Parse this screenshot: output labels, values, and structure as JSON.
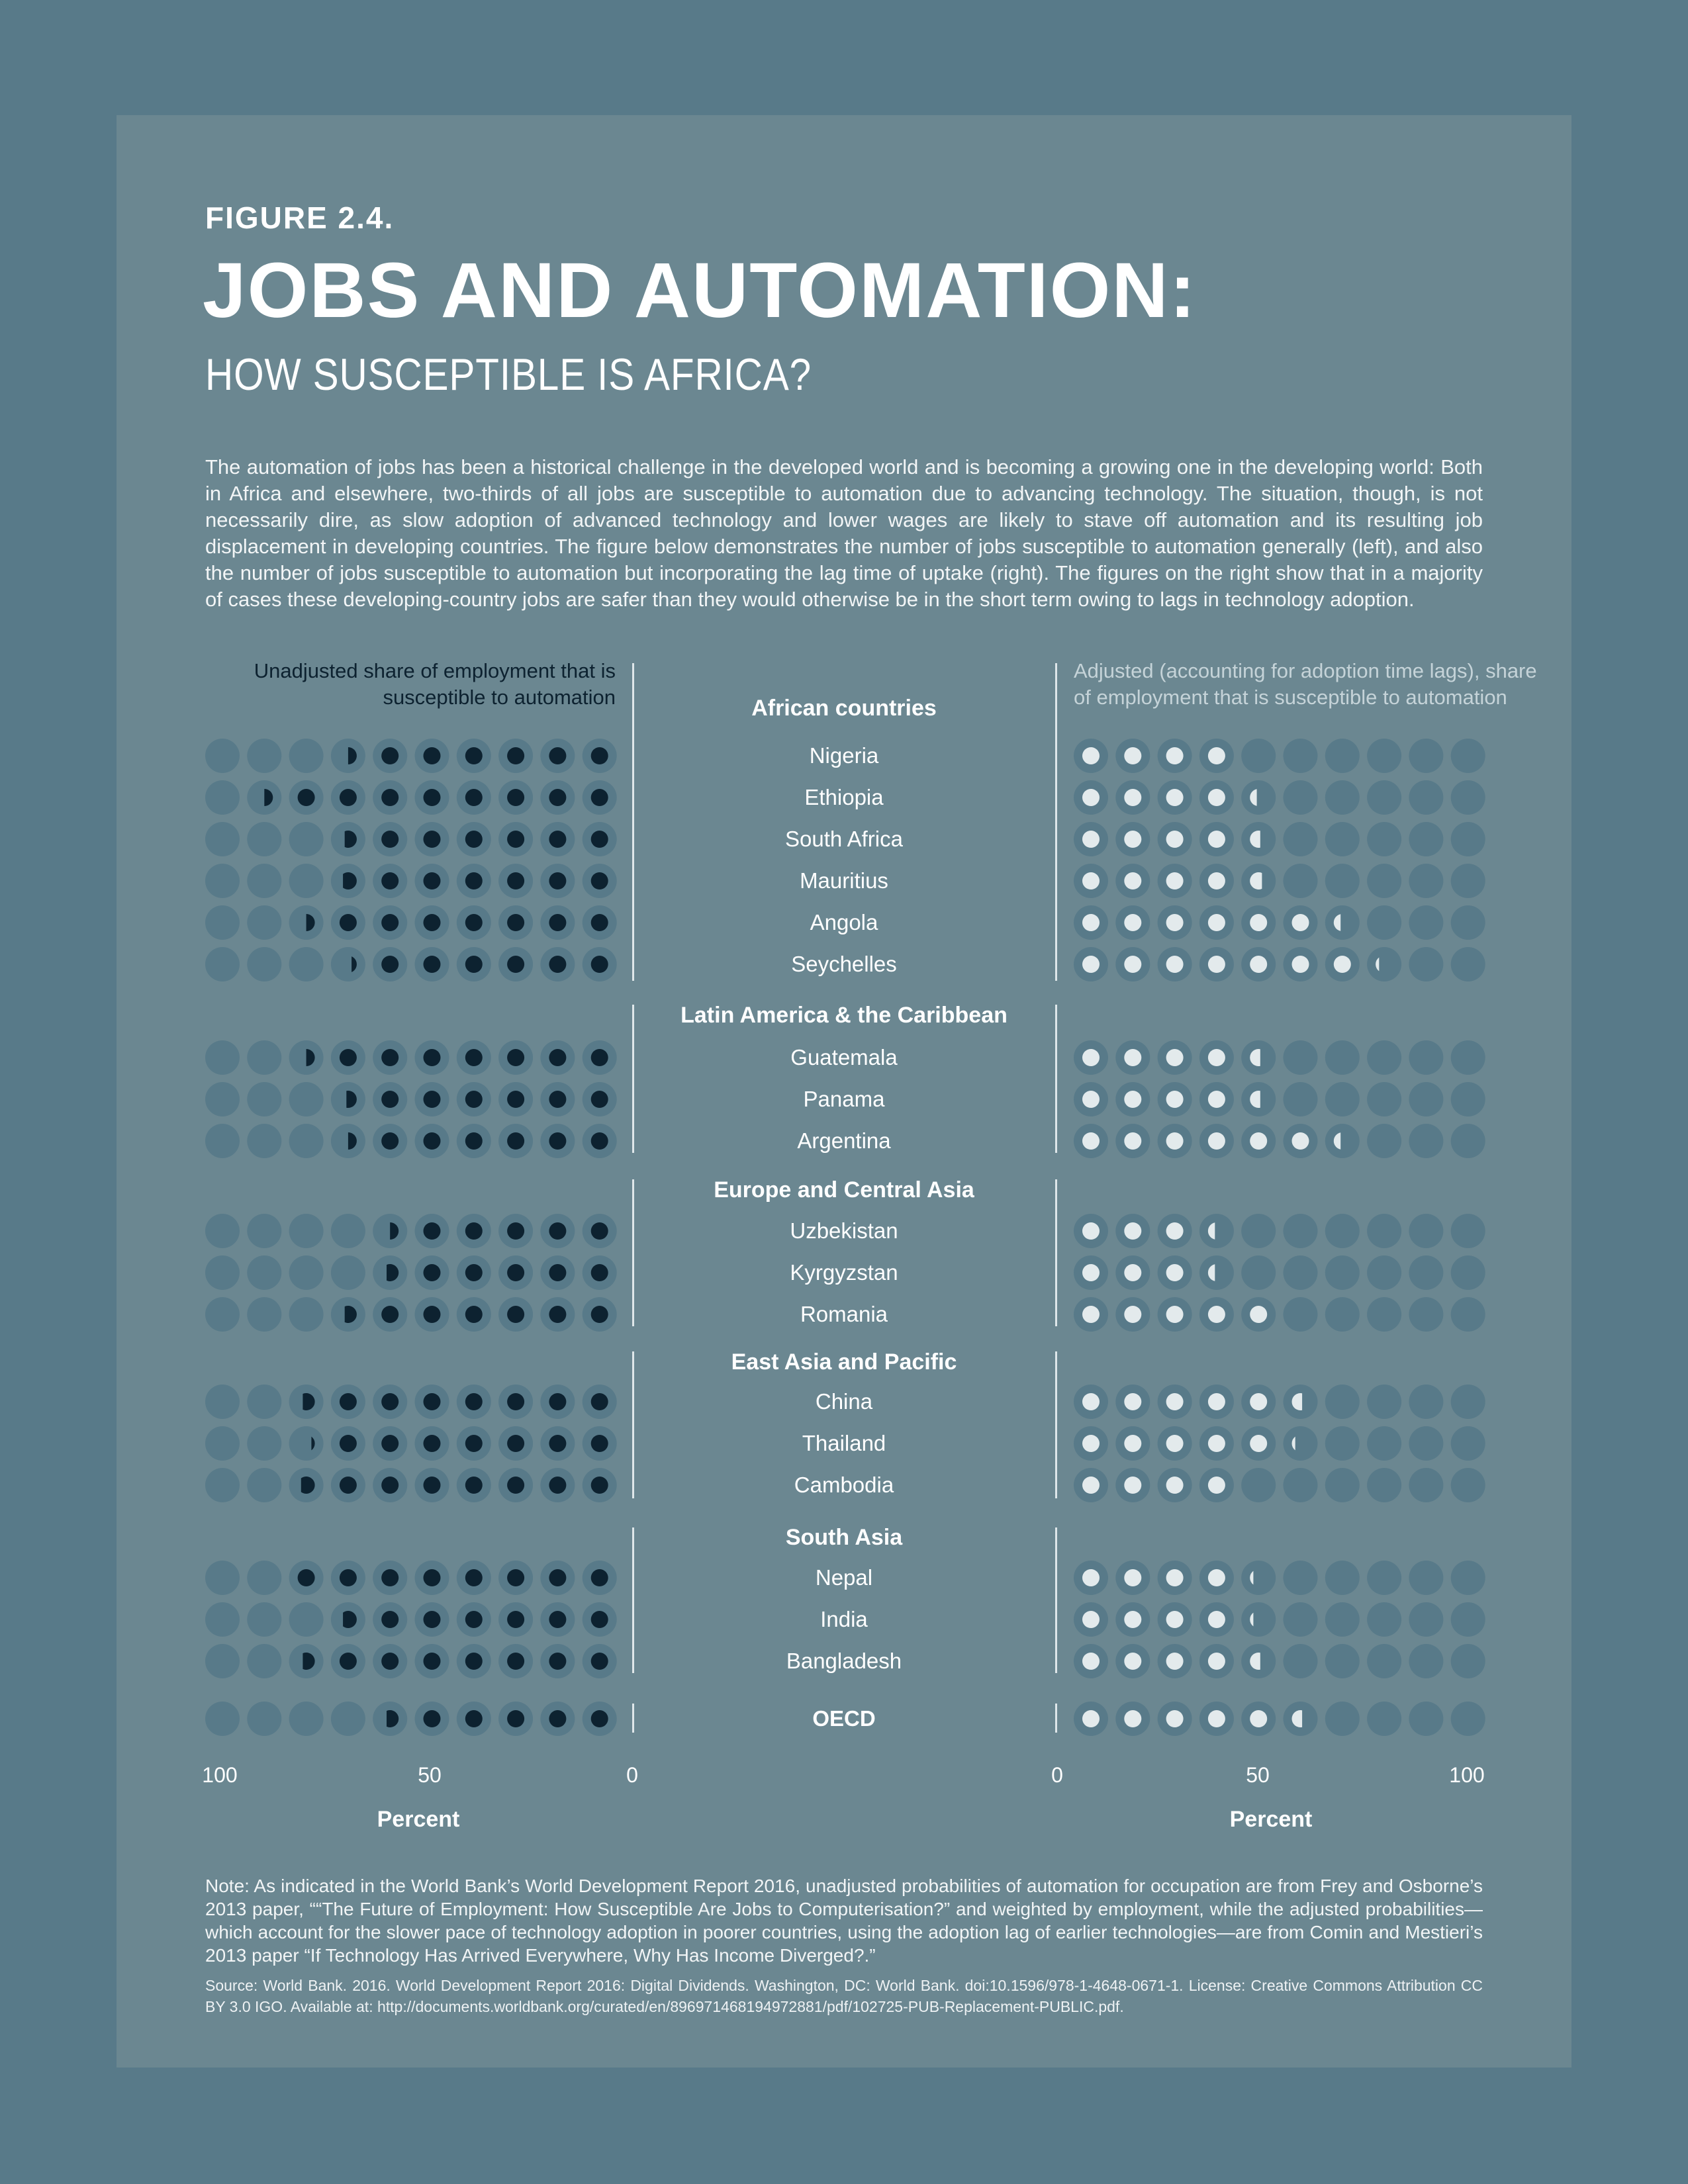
{
  "header": {
    "figure_label": "FIGURE 2.4.",
    "title": "JOBS AND AUTOMATION:",
    "subtitle": "HOW SUSCEPTIBLE IS AFRICA?"
  },
  "intro": "The automation of jobs has been a historical challenge in the developed world and is becoming a growing one in the developing world: Both in Africa and elsewhere, two-thirds of all jobs are susceptible to automation due to advancing technology. The situation, though, is not necessarily dire, as slow adoption of advanced technology and lower wages are likely to stave off automation and its resulting job displacement in developing countries. The figure below demonstrates the number of jobs susceptible to automation generally (left), and also the number of jobs susceptible to automation but incorporating the lag time of uptake (right). The figures on the right show that in a majority of cases these developing-country jobs are safer than they would otherwise be in the short term owing to lags in technology adoption.",
  "colors": {
    "background": "#587a89",
    "panel": "#6b8791",
    "dot_base": "#587a89",
    "left_fill": "#0d2230",
    "right_fill": "#e3eaec",
    "divider": "#dfe7ea"
  },
  "chart_data": {
    "type": "dot-matrix (paired)",
    "left_axis_title": "Unadjusted share of employment that is susceptible to automation",
    "right_axis_title": "Adjusted (accounting for adoption time lags), share of employment that is susceptible to automation",
    "left_ticks": [
      "100",
      "50",
      "0"
    ],
    "right_ticks": [
      "0",
      "50",
      "100"
    ],
    "left_xlabel": "Percent",
    "right_xlabel": "Percent",
    "xlim": [
      0,
      100
    ],
    "unit_per_dot": 10,
    "groups": [
      {
        "region": "African countries",
        "countries": [
          {
            "name": "Nigeria",
            "unadjusted": 65,
            "adjusted": 40
          },
          {
            "name": "Ethiopia",
            "unadjusted": 85,
            "adjusted": 44
          },
          {
            "name": "South Africa",
            "unadjusted": 67,
            "adjusted": 46
          },
          {
            "name": "Mauritius",
            "unadjusted": 68,
            "adjusted": 47
          },
          {
            "name": "Angola",
            "unadjusted": 75,
            "adjusted": 64
          },
          {
            "name": "Seychelles",
            "unadjusted": 63,
            "adjusted": 72
          }
        ]
      },
      {
        "region": "Latin America & the Caribbean",
        "countries": [
          {
            "name": "Guatemala",
            "unadjusted": 75,
            "adjusted": 46
          },
          {
            "name": "Panama",
            "unadjusted": 66,
            "adjusted": 46
          },
          {
            "name": "Argentina",
            "unadjusted": 65,
            "adjusted": 64
          }
        ]
      },
      {
        "region": "Europe and Central Asia",
        "countries": [
          {
            "name": "Uzbekistan",
            "unadjusted": 55,
            "adjusted": 34
          },
          {
            "name": "Kyrgyzstan",
            "unadjusted": 57,
            "adjusted": 34
          },
          {
            "name": "Romania",
            "unadjusted": 67,
            "adjusted": 50
          }
        ]
      },
      {
        "region": "East Asia and Pacific",
        "countries": [
          {
            "name": "China",
            "unadjusted": 77,
            "adjusted": 56
          },
          {
            "name": "Thailand",
            "unadjusted": 72,
            "adjusted": 52
          },
          {
            "name": "Cambodia",
            "unadjusted": 78,
            "adjusted": 40
          }
        ]
      },
      {
        "region": "South Asia",
        "countries": [
          {
            "name": "Nepal",
            "unadjusted": 80,
            "adjusted": 42
          },
          {
            "name": "India",
            "unadjusted": 68,
            "adjusted": 42
          },
          {
            "name": "Bangladesh",
            "unadjusted": 77,
            "adjusted": 46
          }
        ]
      },
      {
        "region": "",
        "countries": [
          {
            "name": "OECD",
            "unadjusted": 57,
            "adjusted": 56,
            "bold": true
          }
        ]
      }
    ]
  },
  "note": "Note: As indicated in the World Bank’s World Development Report 2016, unadjusted probabilities of automation for occupation are from Frey and Osborne’s 2013 paper, ““The Future of Employment: How Susceptible Are Jobs to Computerisation?” and weighted by employment, while the adjusted probabilities—which account for the slower pace of technology adoption in poorer countries, using the adoption lag of earlier technologies—are from Comin and Mestieri’s 2013 paper “If Technology Has Arrived Everywhere, Why Has Income Diverged?.”",
  "source": "Source: World Bank. 2016. World Development Report 2016: Digital Dividends. Washington, DC: World Bank. doi:10.1596/978-1-4648-0671-1. License: Creative Commons Attribution CC BY 3.0 IGO. Available at: http://documents.worldbank.org/curated/en/896971468194972881/pdf/102725-PUB-Replacement-PUBLIC.pdf."
}
